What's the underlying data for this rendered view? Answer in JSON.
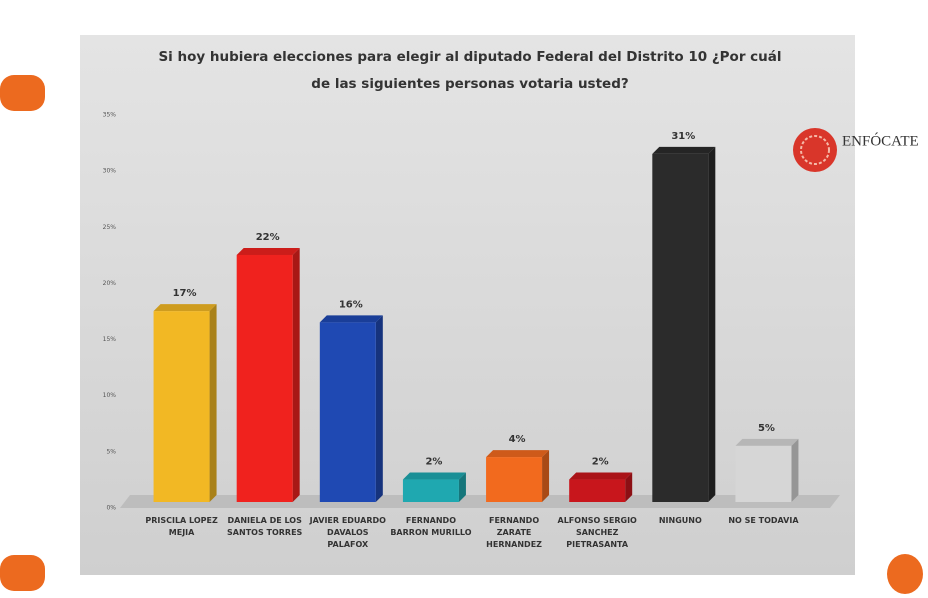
{
  "chart_data": {
    "type": "bar",
    "title": "Si hoy hubiera elecciones para  elegir al diputado Federal del Distrito 10 ¿Por cuál de las siguientes personas votaria usted?",
    "logo": "ENFÓCATE",
    "categories": [
      "PRISCILA LOPEZ MEJIA",
      "DANIELA DE LOS SANTOS TORRES",
      "JAVIER EDUARDO DAVALOS PALAFOX",
      "FERNANDO BARRON MURILLO",
      "FERNANDO ZARATE HERNANDEZ",
      "ALFONSO SERGIO SANCHEZ PIETRASANTA",
      "NINGUNO",
      "NO SE TODAVIA"
    ],
    "values": [
      17,
      22,
      16,
      2,
      4,
      2,
      31,
      5
    ],
    "value_labels": [
      "17%",
      "22%",
      "16%",
      "2%",
      "4%",
      "2%",
      "31%",
      "5%"
    ],
    "colors": [
      "#f2b824",
      "#f0221e",
      "#1f49b3",
      "#1fa8b0",
      "#f26a1e",
      "#c8161c",
      "#2b2b2b",
      "#d6d6d6"
    ],
    "ylim": [
      0,
      35
    ],
    "yticks": [
      {
        "value": 0,
        "label": "0%"
      },
      {
        "value": 5,
        "label": "5%"
      },
      {
        "value": 10,
        "label": "10%"
      },
      {
        "value": 15,
        "label": "15%"
      },
      {
        "value": 20,
        "label": "20%"
      },
      {
        "value": 25,
        "label": "25%"
      },
      {
        "value": 30,
        "label": "30%"
      },
      {
        "value": 35,
        "label": "35%"
      }
    ]
  }
}
